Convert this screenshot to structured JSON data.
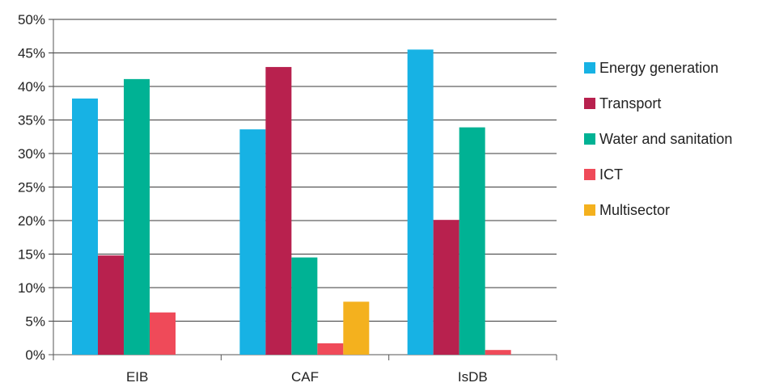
{
  "chart_data": {
    "type": "bar",
    "categories": [
      "EIB",
      "CAF",
      "IsDB"
    ],
    "series": [
      {
        "name": "Energy generation",
        "color": "#17b2e4",
        "values": [
          38.2,
          33.6,
          45.5
        ]
      },
      {
        "name": "Transport",
        "color": "#b8214e",
        "values": [
          14.8,
          42.9,
          20.1
        ]
      },
      {
        "name": "Water and sanitation",
        "color": "#00b294",
        "values": [
          41.1,
          14.5,
          33.9
        ]
      },
      {
        "name": "ICT",
        "color": "#ef4a59",
        "values": [
          6.3,
          1.7,
          0.7
        ]
      },
      {
        "name": "Multisector",
        "color": "#f4b11e",
        "values": [
          0,
          7.9,
          0
        ]
      }
    ],
    "ylim": [
      0,
      50
    ],
    "yticks": [
      "0%",
      "5%",
      "10%",
      "15%",
      "20%",
      "25%",
      "30%",
      "35%",
      "40%",
      "45%",
      "50%"
    ],
    "ytick_values": [
      0,
      5,
      10,
      15,
      20,
      25,
      30,
      35,
      40,
      45,
      50
    ],
    "grid": true,
    "legend_position": "right"
  }
}
